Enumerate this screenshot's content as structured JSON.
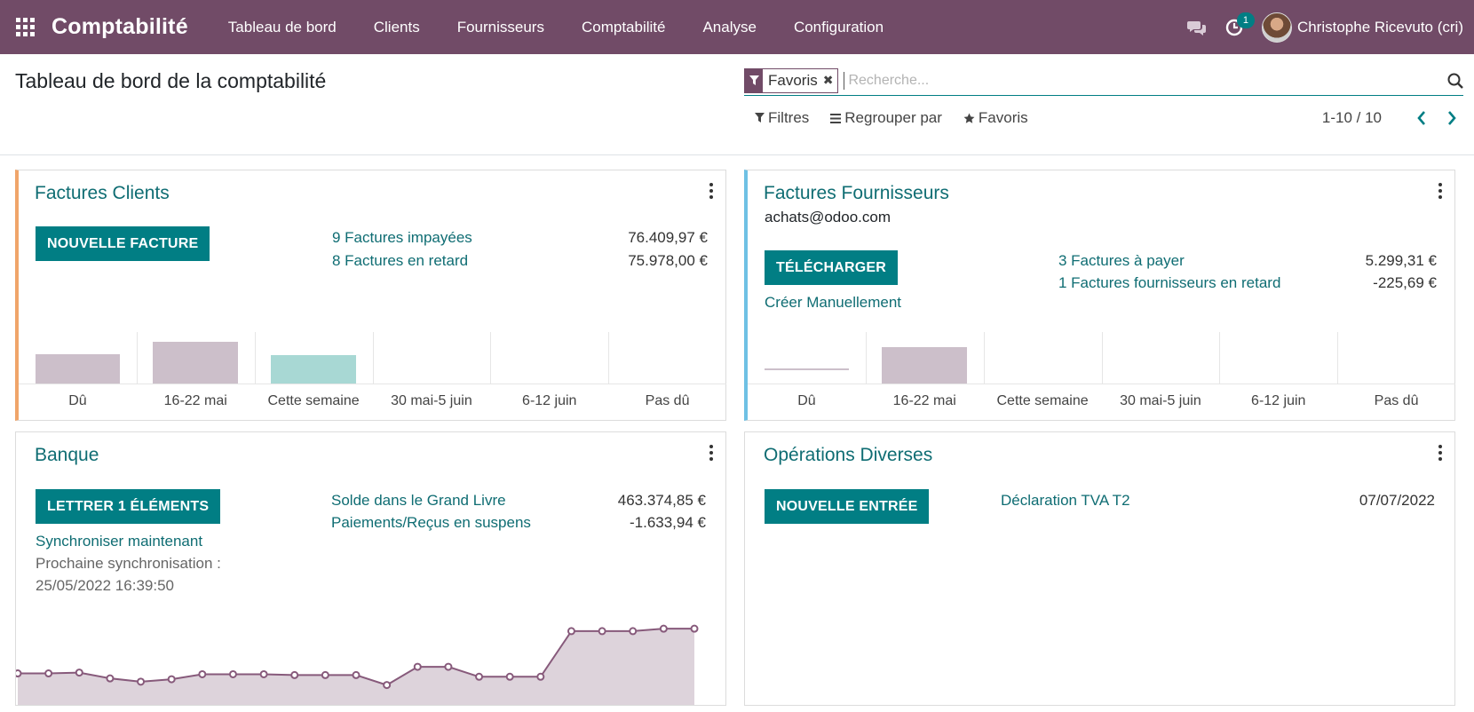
{
  "navbar": {
    "app_name": "Comptabilité",
    "menu": [
      "Tableau de bord",
      "Clients",
      "Fournisseurs",
      "Comptabilité",
      "Analyse",
      "Configuration"
    ],
    "activity_badge": "1",
    "user_name": "Christophe Ricevuto (cri)",
    "bg_color": "#714B67"
  },
  "control_panel": {
    "title": "Tableau de bord de la comptabilité",
    "facet_label": "Favoris",
    "search_placeholder": "Recherche...",
    "filters_label": "Filtres",
    "groupby_label": "Regrouper par",
    "favorites_label": "Favoris",
    "pager": "1-10 / 10"
  },
  "cards": {
    "customer_invoices": {
      "title": "Factures Clients",
      "button": "NOUVELLE FACTURE",
      "stats": [
        {
          "label": "9 Factures impayées",
          "amount": "76.409,97 €"
        },
        {
          "label": "8 Factures en retard",
          "amount": "75.978,00 €"
        }
      ],
      "accent_color": "#f0a56a"
    },
    "vendor_bills": {
      "title": "Factures Fournisseurs",
      "email": "achats@odoo.com",
      "button": "TÉLÉCHARGER",
      "create_manual": "Créer Manuellement",
      "stats": [
        {
          "label": "3 Factures à payer",
          "amount": "5.299,31 €"
        },
        {
          "label": "1 Factures fournisseurs en retard",
          "amount": "-225,69 €"
        }
      ],
      "accent_color": "#6ec1e4"
    },
    "bank": {
      "title": "Banque",
      "button": "LETTRER 1 ÉLÉMENTS",
      "sync_link": "Synchroniser maintenant",
      "next_sync_label": "Prochaine synchronisation :",
      "next_sync_date": "25/05/2022 16:39:50",
      "stats": [
        {
          "label": "Solde dans le Grand Livre",
          "amount": "463.374,85 €"
        },
        {
          "label": "Paiements/Reçus en suspens",
          "amount": "-1.633,94 €"
        }
      ]
    },
    "misc": {
      "title": "Opérations Diverses",
      "button": "NOUVELLE ENTRÉE",
      "declaration": "Déclaration TVA T2",
      "declaration_date": "07/07/2022"
    }
  },
  "chart_data": [
    {
      "type": "bar",
      "categories": [
        "Dû",
        "16-22 mai",
        "Cette semaine",
        "30 mai-5 juin",
        "6-12 juin",
        "Pas dû"
      ],
      "values": [
        34,
        49,
        33,
        0,
        0,
        0
      ],
      "colors": [
        "#ccbfca",
        "#ccbfca",
        "#a8d8d4",
        "#ccbfca",
        "#ccbfca",
        "#ccbfca"
      ]
    },
    {
      "type": "bar",
      "categories": [
        "Dû",
        "16-22 mai",
        "Cette semaine",
        "30 mai-5 juin",
        "6-12 juin",
        "Pas dû"
      ],
      "values": [
        3,
        42,
        0,
        0,
        0,
        0
      ],
      "colors": [
        "#ccbfca",
        "#ccbfca",
        "#ccbfca",
        "#ccbfca",
        "#ccbfca",
        "#ccbfca"
      ]
    },
    {
      "type": "area",
      "values": [
        38,
        38,
        39,
        32,
        28,
        31,
        37,
        37,
        37,
        36,
        36,
        36,
        24,
        46,
        46,
        34,
        34,
        34,
        89,
        89,
        89,
        92,
        92
      ],
      "ylim": [
        0,
        120
      ],
      "line_color": "#875A7B",
      "fill_color": "#ddd3db"
    }
  ]
}
